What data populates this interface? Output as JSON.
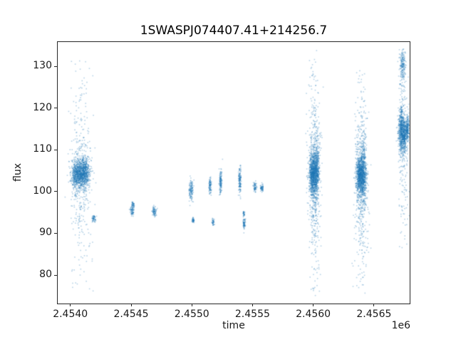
{
  "chart_data": {
    "type": "scatter",
    "title": "1SWASPJ074407.41+214256.7",
    "xlabel": "time",
    "ylabel": "flux",
    "x_offset": "1e6",
    "xlim": [
      2453890,
      2456800
    ],
    "ylim": [
      73,
      136
    ],
    "xticks": [
      2454000,
      2454500,
      2455000,
      2455500,
      2456000,
      2456500
    ],
    "xticklabels": [
      "2.4540",
      "2.4545",
      "2.4550",
      "2.4555",
      "2.4560",
      "2.4565"
    ],
    "yticks": [
      80,
      90,
      100,
      110,
      120,
      130
    ],
    "yticklabels": [
      "80",
      "90",
      "100",
      "110",
      "120",
      "130"
    ],
    "grid": false,
    "legend": "none",
    "marker": {
      "color": "#1f77b4",
      "alpha": 0.32,
      "size": 1.6
    },
    "clusters": [
      {
        "t": 2454060,
        "ts": 28,
        "f": 104.2,
        "fs": 1.5,
        "n": 650
      },
      {
        "t": 2454120,
        "ts": 20,
        "f": 104.6,
        "fs": 1.8,
        "n": 450
      },
      {
        "t": 2454085,
        "ts": 40,
        "f": 103.5,
        "fs": 4.5,
        "n": 300
      },
      {
        "t": 2454085,
        "ts": 45,
        "f": 104.0,
        "fs": 15.0,
        "n": 260,
        "clip": [
          75.5,
          133.5
        ]
      },
      {
        "t": 2454195,
        "ts": 7,
        "f": 93.6,
        "fs": 0.5,
        "n": 55
      },
      {
        "t": 2454510,
        "ts": 8,
        "f": 95.4,
        "fs": 0.6,
        "n": 70
      },
      {
        "t": 2454515,
        "ts": 6,
        "f": 96.9,
        "fs": 0.4,
        "n": 40
      },
      {
        "t": 2454690,
        "ts": 9,
        "f": 95.2,
        "fs": 0.6,
        "n": 80
      },
      {
        "t": 2454995,
        "ts": 8,
        "f": 100.3,
        "fs": 1.2,
        "n": 130
      },
      {
        "t": 2455010,
        "ts": 5,
        "f": 93.1,
        "fs": 0.35,
        "n": 45
      },
      {
        "t": 2455150,
        "ts": 6,
        "f": 101.3,
        "fs": 1.0,
        "n": 90
      },
      {
        "t": 2455175,
        "ts": 5,
        "f": 92.6,
        "fs": 0.4,
        "n": 40
      },
      {
        "t": 2455238,
        "ts": 5,
        "f": 102.3,
        "fs": 1.6,
        "n": 140
      },
      {
        "t": 2455396,
        "ts": 5,
        "f": 102.6,
        "fs": 1.7,
        "n": 140
      },
      {
        "t": 2455430,
        "ts": 5,
        "f": 92.3,
        "fs": 0.7,
        "n": 70
      },
      {
        "t": 2455428,
        "ts": 4,
        "f": 94.7,
        "fs": 0.35,
        "n": 30
      },
      {
        "t": 2455520,
        "ts": 6,
        "f": 101.1,
        "fs": 0.55,
        "n": 65
      },
      {
        "t": 2455578,
        "ts": 6,
        "f": 100.9,
        "fs": 0.5,
        "n": 60
      },
      {
        "t": 2456000,
        "ts": 16,
        "f": 104.2,
        "fs": 2.3,
        "n": 850
      },
      {
        "t": 2456030,
        "ts": 10,
        "f": 105.2,
        "fs": 3.2,
        "n": 350
      },
      {
        "t": 2456010,
        "ts": 22,
        "f": 103.5,
        "fs": 7.0,
        "n": 380
      },
      {
        "t": 2456010,
        "ts": 26,
        "f": 104.0,
        "fs": 16.0,
        "n": 320,
        "clip": [
          75.0,
          133.8
        ]
      },
      {
        "t": 2456390,
        "ts": 18,
        "f": 103.8,
        "fs": 2.3,
        "n": 900
      },
      {
        "t": 2456415,
        "ts": 10,
        "f": 104.6,
        "fs": 4.0,
        "n": 300
      },
      {
        "t": 2456395,
        "ts": 25,
        "f": 103.0,
        "fs": 8.0,
        "n": 350
      },
      {
        "t": 2456395,
        "ts": 28,
        "f": 102.0,
        "fs": 15.0,
        "n": 250,
        "clip": [
          75.5,
          129.0
        ]
      },
      {
        "t": 2456725,
        "ts": 12,
        "f": 114.6,
        "fs": 2.8,
        "n": 550
      },
      {
        "t": 2456750,
        "ts": 8,
        "f": 113.8,
        "fs": 2.0,
        "n": 300
      },
      {
        "t": 2456775,
        "ts": 7,
        "f": 114.8,
        "fs": 1.6,
        "n": 220
      },
      {
        "t": 2456735,
        "ts": 10,
        "f": 130.2,
        "fs": 2.0,
        "n": 170,
        "clip": [
          125.0,
          134.3
        ]
      },
      {
        "t": 2456740,
        "ts": 20,
        "f": 112.0,
        "fs": 12.0,
        "n": 220,
        "clip": [
          85.0,
          134.3
        ]
      }
    ]
  }
}
